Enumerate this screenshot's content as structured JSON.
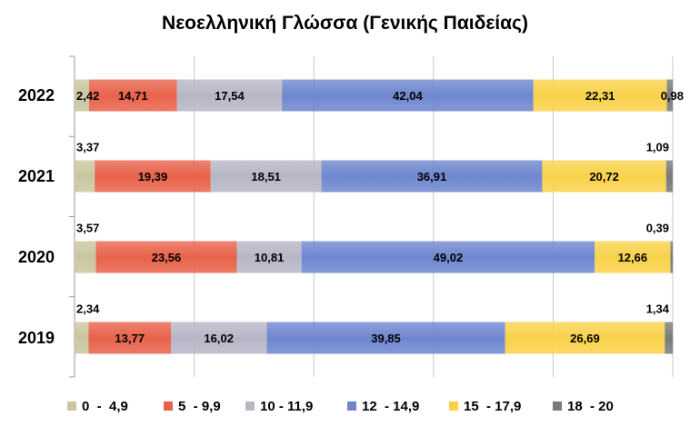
{
  "chart_data": {
    "type": "bar",
    "orientation": "horizontal",
    "stacked": true,
    "title": "Νεοελληνική Γλώσσα (Γενικής Παιδείας)",
    "xlabel": "",
    "ylabel": "",
    "xlim": [
      0,
      100
    ],
    "grid": true,
    "legend_position": "bottom",
    "categories": [
      "2022",
      "2021",
      "2020",
      "2019"
    ],
    "series": [
      {
        "name": "0  -  4,9",
        "color": "#c9c6a0",
        "values": [
          2.42,
          3.37,
          3.57,
          2.34
        ],
        "labels": [
          "2,42",
          "3,37",
          "3,57",
          "2,34"
        ]
      },
      {
        "name": "5  - 9,9",
        "color": "#e8624a",
        "values": [
          14.71,
          19.39,
          23.56,
          13.77
        ],
        "labels": [
          "14,71",
          "19,39",
          "23,56",
          "13,77"
        ]
      },
      {
        "name": "10 - 11,9",
        "color": "#b6b6c6",
        "values": [
          17.54,
          18.51,
          10.81,
          16.02
        ],
        "labels": [
          "17,54",
          "18,51",
          "10,81",
          "16,02"
        ]
      },
      {
        "name": "12  - 14,9",
        "color": "#6f86cf",
        "values": [
          42.04,
          36.91,
          49.02,
          39.85
        ],
        "labels": [
          "42,04",
          "36,91",
          "49,02",
          "39,85"
        ]
      },
      {
        "name": "15  - 17,9",
        "color": "#f9d24a",
        "values": [
          22.31,
          20.72,
          12.66,
          26.69
        ],
        "labels": [
          "22,31",
          "20,72",
          "12,66",
          "26,69"
        ]
      },
      {
        "name": "18  - 20",
        "color": "#7a7a7a",
        "values": [
          0.98,
          1.09,
          0.39,
          1.34
        ],
        "labels": [
          "0,98",
          "1,09",
          "0,39",
          "1,34"
        ]
      }
    ]
  }
}
